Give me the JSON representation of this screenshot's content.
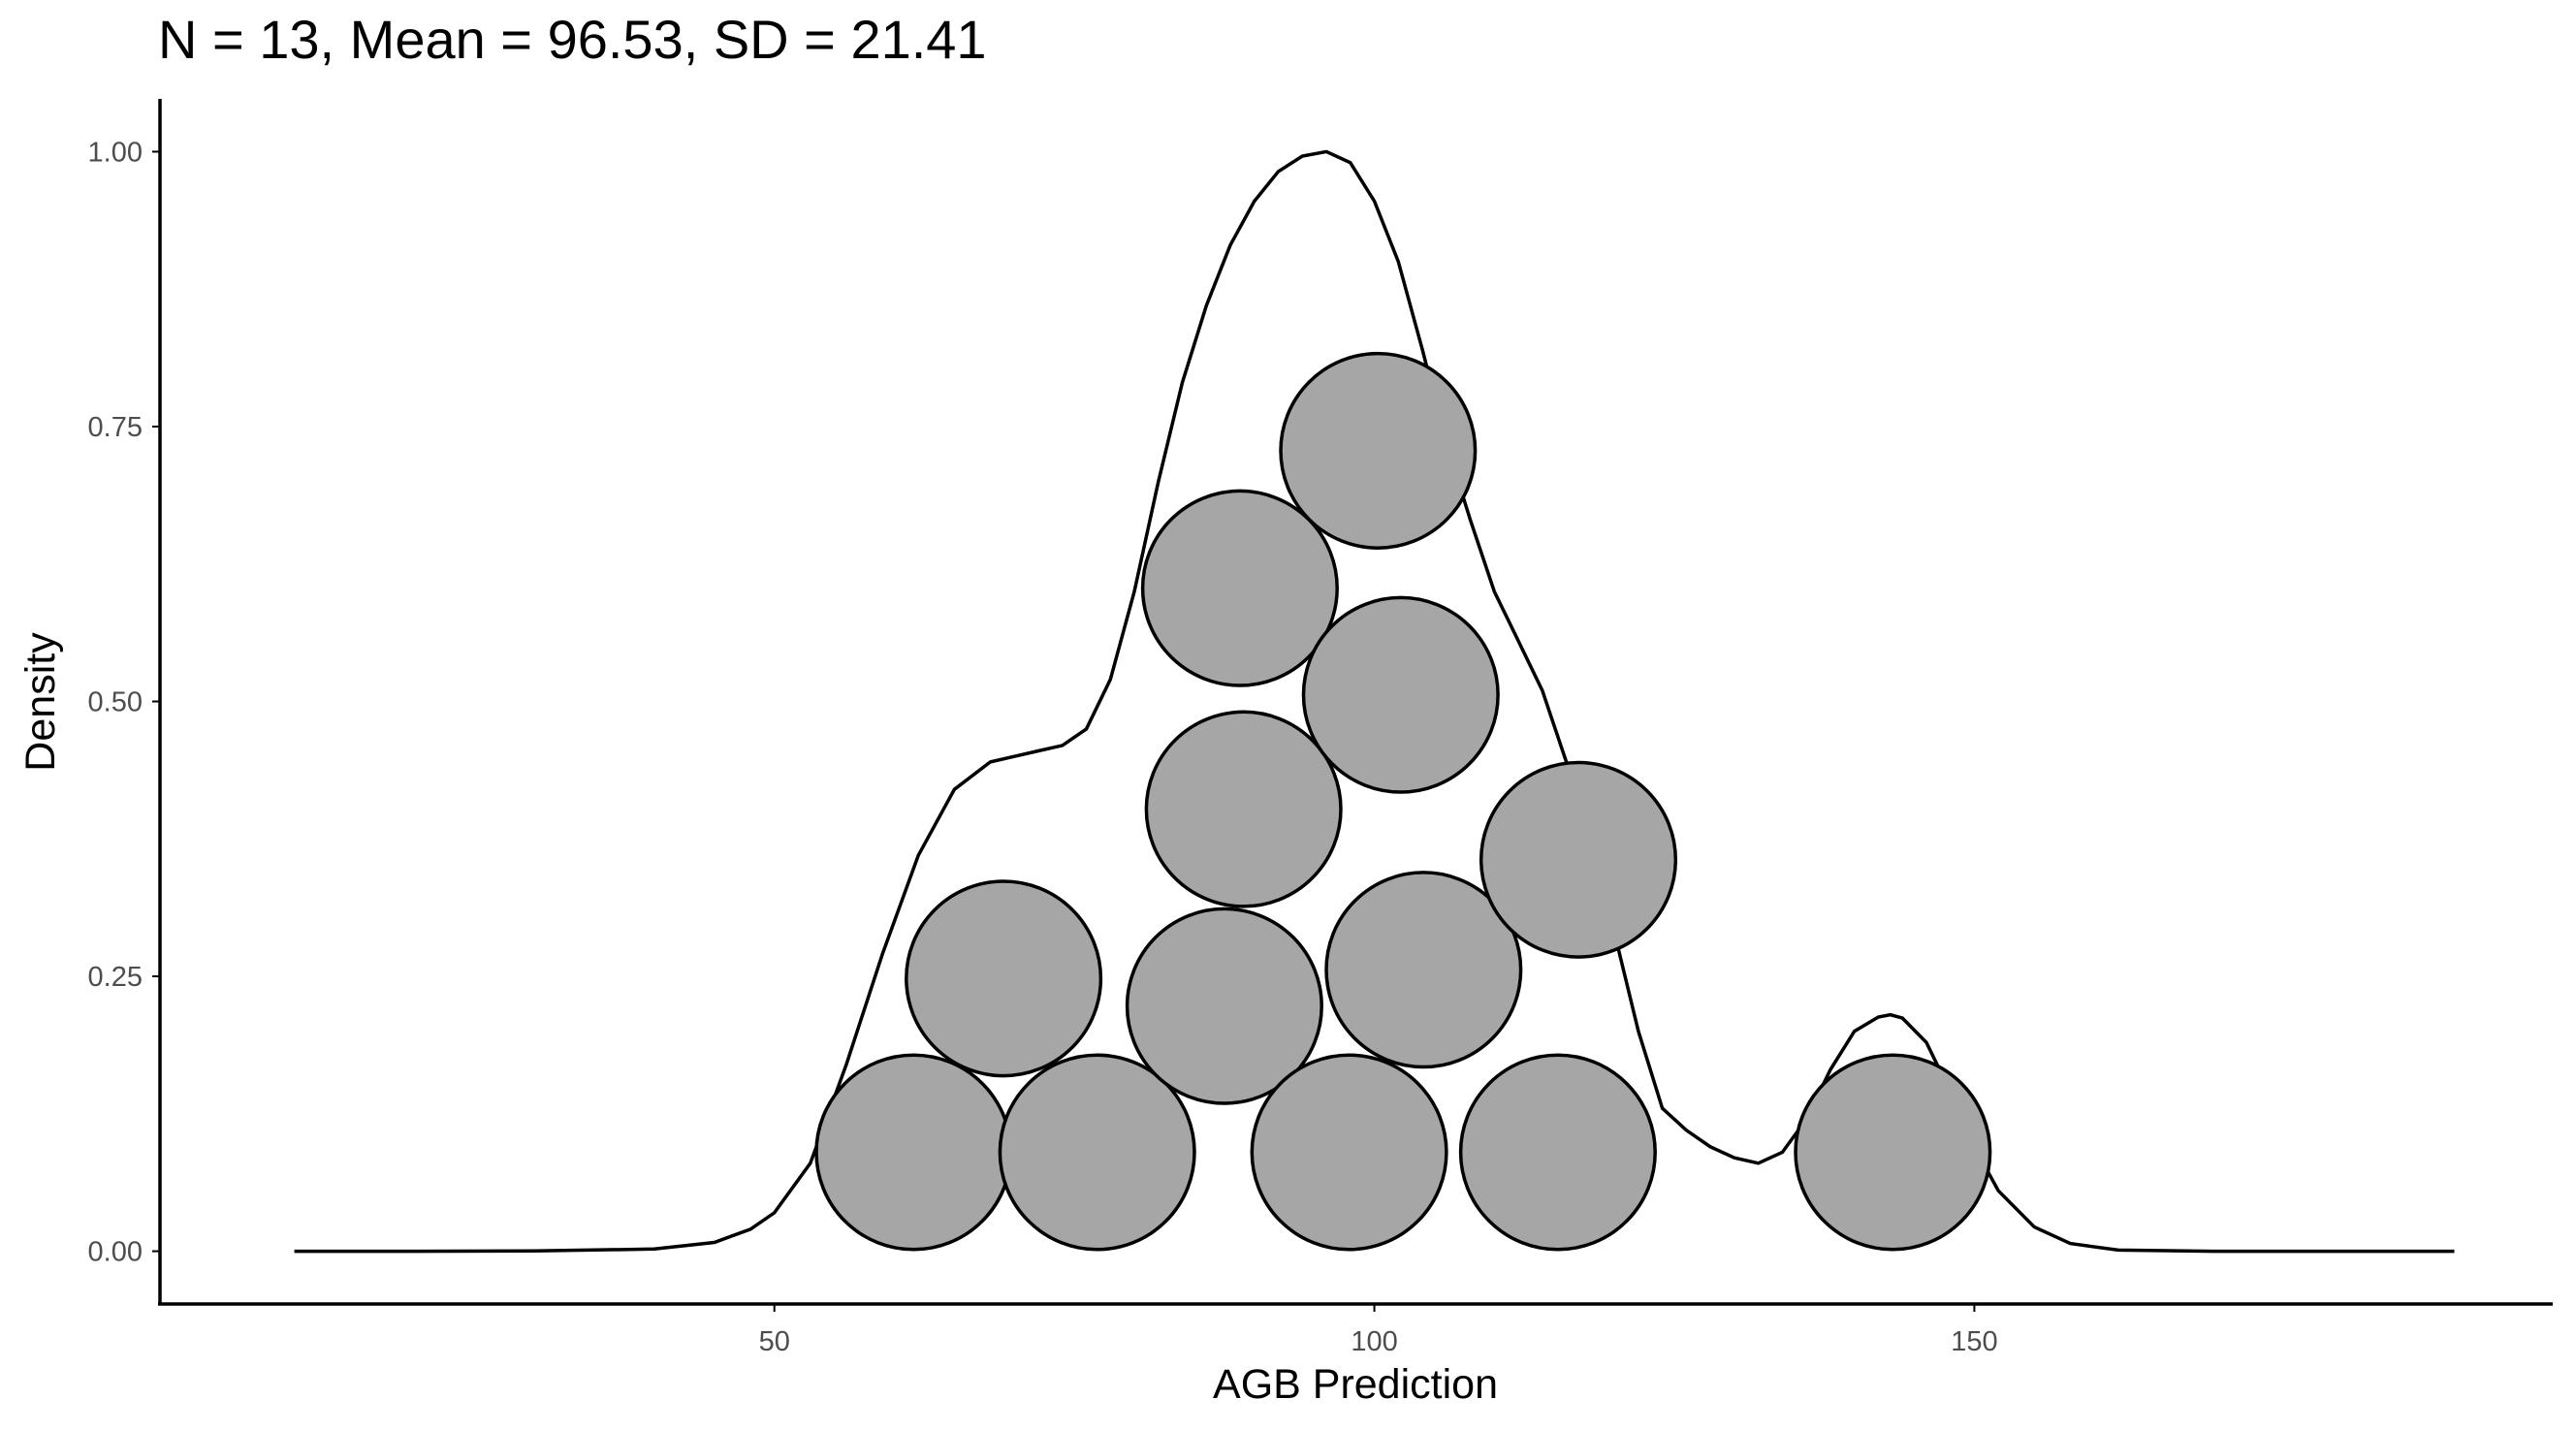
{
  "chart_data": {
    "type": "dotplot-density",
    "title": "N = 13, Mean = 96.53, SD = 21.41",
    "xlabel": "AGB Prediction",
    "ylabel": "Density",
    "xlim": [
      -1.2,
      198.2
    ],
    "ylim": [
      -0.048,
      1.048
    ],
    "x_ticks": [
      {
        "value": 50,
        "label": "50"
      },
      {
        "value": 100,
        "label": "100"
      },
      {
        "value": 150,
        "label": "150"
      }
    ],
    "y_ticks": [
      {
        "value": 0.0,
        "label": "0.00"
      },
      {
        "value": 0.25,
        "label": "0.25"
      },
      {
        "value": 0.5,
        "label": "0.50"
      },
      {
        "value": 0.75,
        "label": "0.75"
      },
      {
        "value": 1.0,
        "label": "1.00"
      }
    ],
    "dot_fill": "#a6a6a6",
    "dot_radius_x_units": 8.1,
    "points": [
      {
        "x": 61.6,
        "y": 0.09
      },
      {
        "x": 69.1,
        "y": 0.248
      },
      {
        "x": 76.9,
        "y": 0.09
      },
      {
        "x": 87.5,
        "y": 0.223
      },
      {
        "x": 89.1,
        "y": 0.402
      },
      {
        "x": 88.8,
        "y": 0.603
      },
      {
        "x": 97.9,
        "y": 0.09
      },
      {
        "x": 100.3,
        "y": 0.728
      },
      {
        "x": 102.2,
        "y": 0.506
      },
      {
        "x": 104.1,
        "y": 0.256
      },
      {
        "x": 115.3,
        "y": 0.09
      },
      {
        "x": 117.0,
        "y": 0.356
      },
      {
        "x": 143.2,
        "y": 0.09
      }
    ],
    "density_curve": {
      "x": [
        10,
        20,
        30,
        40,
        45,
        48,
        50,
        53,
        56,
        59,
        62,
        65,
        68,
        70,
        72,
        74,
        76,
        78,
        80,
        82,
        84,
        86,
        88,
        90,
        92,
        94,
        96,
        98,
        100,
        102,
        104,
        106,
        108,
        110,
        112,
        114,
        116,
        118,
        120,
        122,
        124,
        126,
        128,
        130,
        132,
        134,
        136,
        138,
        140,
        142,
        143,
        144,
        146,
        148,
        150,
        152,
        155,
        158,
        162,
        170,
        180,
        190
      ],
      "y": [
        0,
        0,
        0.0002,
        0.002,
        0.008,
        0.02,
        0.035,
        0.08,
        0.17,
        0.27,
        0.36,
        0.42,
        0.445,
        0.45,
        0.455,
        0.46,
        0.475,
        0.52,
        0.6,
        0.7,
        0.79,
        0.86,
        0.915,
        0.955,
        0.982,
        0.996,
        1.0,
        0.99,
        0.955,
        0.9,
        0.82,
        0.735,
        0.665,
        0.6,
        0.555,
        0.51,
        0.445,
        0.365,
        0.29,
        0.2,
        0.13,
        0.11,
        0.095,
        0.085,
        0.08,
        0.09,
        0.12,
        0.165,
        0.2,
        0.213,
        0.215,
        0.212,
        0.19,
        0.145,
        0.095,
        0.055,
        0.022,
        0.007,
        0.001,
        0,
        0,
        0
      ]
    }
  }
}
